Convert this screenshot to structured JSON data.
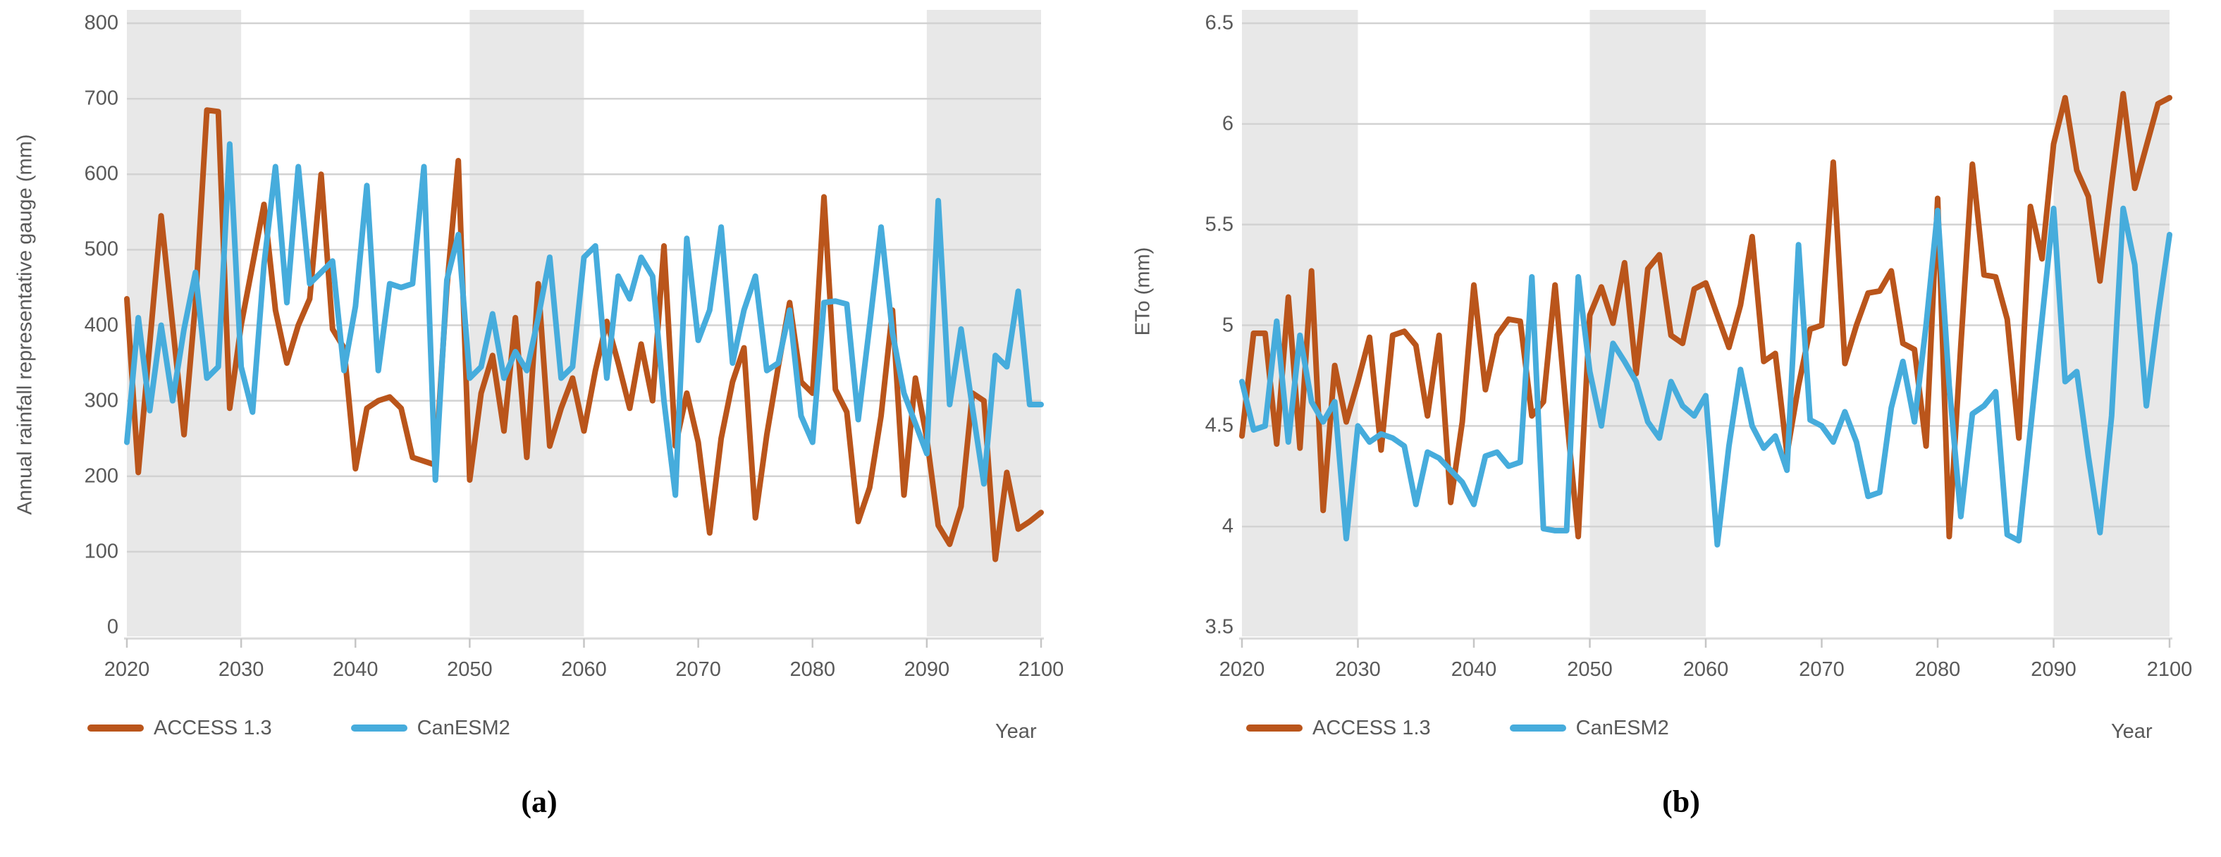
{
  "colors": {
    "access13": "#BA551B",
    "canesm2": "#46ACDC",
    "band_fill": "#E8E8E8",
    "gridline": "#D2D2D2",
    "axis_line": "#D9D9D9",
    "tick_mark": "#C6C6C6",
    "axis_text": "#595959",
    "caption_text": "#000000"
  },
  "chart_data": [
    {
      "id": "a",
      "type": "line",
      "title": "",
      "caption": "(a)",
      "xlabel": "Year",
      "ylabel": "Annual rainfall representative gauge (mm)",
      "ylim": [
        0,
        800
      ],
      "xlim": [
        2020,
        2100
      ],
      "grid": true,
      "legend_position": "bottom-left",
      "yticks": [
        0,
        100,
        200,
        300,
        400,
        500,
        600,
        700,
        800
      ],
      "ytick_labels": [
        "0",
        "100",
        "200",
        "300",
        "400",
        "500",
        "600",
        "700",
        "800"
      ],
      "xticks": [
        2020,
        2030,
        2040,
        2050,
        2060,
        2070,
        2080,
        2090,
        2100
      ],
      "xtick_labels": [
        "2020",
        "2030",
        "2040",
        "2050",
        "2060",
        "2070",
        "2080",
        "2090",
        "2100"
      ],
      "shaded_year_bands": [
        [
          2020,
          2030
        ],
        [
          2050,
          2060
        ],
        [
          2090,
          2100
        ]
      ],
      "x": [
        2020,
        2021,
        2022,
        2023,
        2024,
        2025,
        2026,
        2027,
        2028,
        2029,
        2030,
        2031,
        2032,
        2033,
        2034,
        2035,
        2036,
        2037,
        2038,
        2039,
        2040,
        2041,
        2042,
        2043,
        2044,
        2045,
        2046,
        2047,
        2048,
        2049,
        2050,
        2051,
        2052,
        2053,
        2054,
        2055,
        2056,
        2057,
        2058,
        2059,
        2060,
        2061,
        2062,
        2063,
        2064,
        2065,
        2066,
        2067,
        2068,
        2069,
        2070,
        2071,
        2072,
        2073,
        2074,
        2075,
        2076,
        2077,
        2078,
        2079,
        2080,
        2081,
        2082,
        2083,
        2084,
        2085,
        2086,
        2087,
        2088,
        2089,
        2090,
        2091,
        2092,
        2093,
        2094,
        2095,
        2096,
        2097,
        2098,
        2099,
        2100
      ],
      "series": [
        {
          "name": "ACCESS 1.3",
          "color": "#BA551B",
          "values": [
            435,
            205,
            375,
            545,
            400,
            255,
            430,
            685,
            683,
            290,
            400,
            480,
            560,
            420,
            350,
            400,
            435,
            600,
            395,
            370,
            210,
            290,
            300,
            305,
            290,
            225,
            220,
            215,
            450,
            618,
            195,
            310,
            360,
            260,
            410,
            225,
            455,
            240,
            290,
            330,
            260,
            340,
            405,
            350,
            290,
            375,
            300,
            505,
            240,
            310,
            245,
            125,
            250,
            325,
            370,
            145,
            255,
            345,
            430,
            325,
            310,
            570,
            315,
            285,
            140,
            185,
            280,
            420,
            175,
            330,
            250,
            135,
            110,
            160,
            310,
            300,
            90,
            205,
            130,
            140,
            152
          ]
        },
        {
          "name": "CanESM2",
          "color": "#46ACDC",
          "values": [
            245,
            410,
            287,
            400,
            300,
            395,
            470,
            330,
            345,
            640,
            345,
            285,
            480,
            610,
            430,
            610,
            455,
            470,
            485,
            340,
            425,
            585,
            340,
            455,
            450,
            455,
            610,
            195,
            460,
            520,
            330,
            345,
            415,
            330,
            365,
            340,
            410,
            490,
            330,
            345,
            490,
            505,
            330,
            465,
            435,
            490,
            465,
            300,
            175,
            515,
            380,
            420,
            530,
            350,
            420,
            465,
            340,
            350,
            420,
            280,
            245,
            430,
            432,
            428,
            275,
            400,
            530,
            390,
            310,
            270,
            230,
            565,
            295,
            395,
            290,
            190,
            360,
            345,
            445,
            295,
            295
          ]
        }
      ]
    },
    {
      "id": "b",
      "type": "line",
      "title": "",
      "caption": "(b)",
      "xlabel": "Year",
      "ylabel": "ETo (mm)",
      "ylim": [
        3.5,
        6.5
      ],
      "xlim": [
        2020,
        2100
      ],
      "grid": true,
      "legend_position": "bottom-left",
      "yticks": [
        3.5,
        4,
        4.5,
        5,
        5.5,
        6,
        6.5
      ],
      "ytick_labels": [
        "3.5",
        "4",
        "4.5",
        "5",
        "5.5",
        "6",
        "6.5"
      ],
      "xticks": [
        2020,
        2030,
        2040,
        2050,
        2060,
        2070,
        2080,
        2090,
        2100
      ],
      "xtick_labels": [
        "2020",
        "2030",
        "2040",
        "2050",
        "2060",
        "2070",
        "2080",
        "2090",
        "2100"
      ],
      "shaded_year_bands": [
        [
          2020,
          2030
        ],
        [
          2050,
          2060
        ],
        [
          2090,
          2100
        ]
      ],
      "x": [
        2020,
        2021,
        2022,
        2023,
        2024,
        2025,
        2026,
        2027,
        2028,
        2029,
        2030,
        2031,
        2032,
        2033,
        2034,
        2035,
        2036,
        2037,
        2038,
        2039,
        2040,
        2041,
        2042,
        2043,
        2044,
        2045,
        2046,
        2047,
        2048,
        2049,
        2050,
        2051,
        2052,
        2053,
        2054,
        2055,
        2056,
        2057,
        2058,
        2059,
        2060,
        2061,
        2062,
        2063,
        2064,
        2065,
        2066,
        2067,
        2068,
        2069,
        2070,
        2071,
        2072,
        2073,
        2074,
        2075,
        2076,
        2077,
        2078,
        2079,
        2080,
        2081,
        2082,
        2083,
        2084,
        2085,
        2086,
        2087,
        2088,
        2089,
        2090,
        2091,
        2092,
        2093,
        2094,
        2095,
        2096,
        2097,
        2098,
        2099,
        2100
      ],
      "series": [
        {
          "name": "ACCESS 1.3",
          "color": "#BA551B",
          "values": [
            4.45,
            4.96,
            4.96,
            4.41,
            5.14,
            4.39,
            5.27,
            4.08,
            4.8,
            4.52,
            4.72,
            4.94,
            4.38,
            4.95,
            4.97,
            4.9,
            4.55,
            4.95,
            4.12,
            4.52,
            5.2,
            4.68,
            4.95,
            5.03,
            5.02,
            4.55,
            4.62,
            5.2,
            4.55,
            3.95,
            5.05,
            5.19,
            5.01,
            5.31,
            4.76,
            5.28,
            5.35,
            4.95,
            4.91,
            5.18,
            5.21,
            5.05,
            4.89,
            5.1,
            5.44,
            4.82,
            4.86,
            4.36,
            4.7,
            4.98,
            5.0,
            5.81,
            4.81,
            5.0,
            5.16,
            5.17,
            5.27,
            4.91,
            4.88,
            4.4,
            5.63,
            3.95,
            4.9,
            5.8,
            5.25,
            5.24,
            5.03,
            4.44,
            5.59,
            5.33,
            5.9,
            6.13,
            5.77,
            5.64,
            5.22,
            5.7,
            6.15,
            5.68,
            5.89,
            6.1,
            6.13
          ]
        },
        {
          "name": "CanESM2",
          "color": "#46ACDC",
          "values": [
            4.72,
            4.48,
            4.5,
            5.02,
            4.42,
            4.95,
            4.62,
            4.52,
            4.62,
            3.94,
            4.5,
            4.42,
            4.46,
            4.44,
            4.4,
            4.11,
            4.37,
            4.34,
            4.28,
            4.22,
            4.11,
            4.35,
            4.37,
            4.3,
            4.32,
            5.24,
            3.99,
            3.98,
            3.98,
            5.24,
            4.77,
            4.5,
            4.91,
            4.82,
            4.72,
            4.52,
            4.44,
            4.72,
            4.6,
            4.55,
            4.65,
            3.91,
            4.4,
            4.78,
            4.5,
            4.39,
            4.45,
            4.28,
            5.4,
            4.53,
            4.5,
            4.42,
            4.57,
            4.42,
            4.15,
            4.17,
            4.59,
            4.82,
            4.52,
            5.0,
            5.57,
            4.7,
            4.05,
            4.56,
            4.6,
            4.67,
            3.96,
            3.93,
            4.48,
            5.03,
            5.58,
            4.72,
            4.77,
            4.35,
            3.97,
            4.55,
            5.58,
            5.3,
            4.6,
            5.05,
            5.45
          ]
        }
      ]
    }
  ]
}
